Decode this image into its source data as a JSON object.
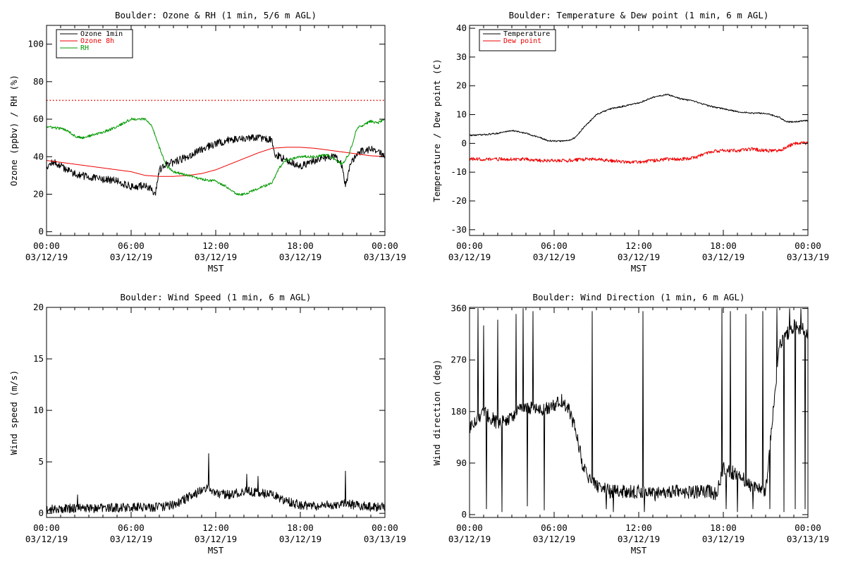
{
  "colors": {
    "black": "#000000",
    "red": "#ee0000",
    "green": "#009900",
    "background": "#ffffff"
  },
  "chart_data": [
    {
      "id": "ozone",
      "type": "line",
      "title": "Boulder: Ozone & RH (1 min, 5/6 m AGL)",
      "xlabel": "MST",
      "ylabel": "Ozone (ppbv) / RH (%)",
      "xlim": [
        0,
        24
      ],
      "ylim": [
        -2,
        110
      ],
      "yticks": [
        0,
        20,
        40,
        60,
        80,
        100
      ],
      "xticks": [
        {
          "hour": 0,
          "time": "00:00",
          "date": "03/12/19"
        },
        {
          "hour": 6,
          "time": "06:00",
          "date": "03/12/19"
        },
        {
          "hour": 12,
          "time": "12:00",
          "date": "03/12/19"
        },
        {
          "hour": 18,
          "time": "18:00",
          "date": "03/12/19"
        },
        {
          "hour": 24,
          "time": "00:00",
          "date": "03/13/19"
        }
      ],
      "legend": {
        "position": "top-left"
      },
      "reference_lines": [
        {
          "y": 70,
          "color": "#ee0000",
          "style": "dotted"
        }
      ],
      "series": [
        {
          "name": "Ozone 1min",
          "color": "#000000",
          "noise": 2.0,
          "seed": 11,
          "x": [
            0,
            0.5,
            1,
            2,
            3,
            4,
            5,
            6,
            6.5,
            7,
            7.5,
            7.7,
            8,
            8.5,
            9,
            10,
            11,
            12,
            13,
            14,
            15,
            16,
            16.1,
            17,
            18,
            19,
            20,
            20.5,
            21,
            21.2,
            21.5,
            22,
            23,
            24
          ],
          "y": [
            35,
            37,
            35,
            31,
            29,
            28,
            27,
            24,
            24,
            25,
            22,
            19,
            33,
            36,
            37,
            40,
            44,
            47,
            49,
            50,
            50,
            49,
            42,
            38,
            35,
            38,
            40,
            40,
            35,
            24,
            35,
            42,
            44,
            41
          ]
        },
        {
          "name": "Ozone 8h",
          "color": "#ee0000",
          "noise": 0,
          "seed": 0,
          "x": [
            0,
            2,
            4,
            6,
            7,
            8,
            9,
            10,
            11,
            12,
            13,
            14,
            15,
            16,
            17,
            18,
            19,
            20,
            21,
            22,
            23,
            24
          ],
          "y": [
            38,
            36,
            34,
            32,
            30,
            29.5,
            29.5,
            30,
            31,
            33,
            36,
            39,
            42,
            44.5,
            45,
            45,
            44.5,
            43.5,
            42.5,
            41.5,
            40.5,
            40
          ]
        },
        {
          "name": "RH",
          "color": "#009900",
          "noise": 0.7,
          "seed": 23,
          "x": [
            0,
            1,
            1.5,
            2,
            2.5,
            3,
            4,
            5,
            6,
            7,
            7.5,
            8,
            8.5,
            9,
            10,
            11,
            12,
            13,
            13.5,
            14,
            15,
            16,
            16.5,
            17,
            18,
            19,
            20,
            20.5,
            21,
            21.5,
            22,
            23,
            23.5,
            24
          ],
          "y": [
            56,
            55,
            54,
            51,
            50,
            51,
            53,
            56,
            60,
            60,
            56,
            45,
            35,
            32,
            30,
            28,
            27,
            23,
            20,
            20,
            23,
            26,
            34,
            38,
            40,
            40,
            41,
            38,
            36,
            42,
            55,
            59,
            58,
            60
          ]
        }
      ]
    },
    {
      "id": "temperature",
      "type": "line",
      "title": "Boulder: Temperature & Dew point (1 min, 6 m AGL)",
      "xlabel": "MST",
      "ylabel": "Temperature / Dew point (C)",
      "xlim": [
        0,
        24
      ],
      "ylim": [
        -32,
        41
      ],
      "yticks": [
        -30,
        -20,
        -10,
        0,
        10,
        20,
        30,
        40
      ],
      "xticks": [
        {
          "hour": 0,
          "time": "00:00",
          "date": "03/12/19"
        },
        {
          "hour": 6,
          "time": "06:00",
          "date": "03/12/19"
        },
        {
          "hour": 12,
          "time": "12:00",
          "date": "03/12/19"
        },
        {
          "hour": 18,
          "time": "18:00",
          "date": "03/12/19"
        },
        {
          "hour": 24,
          "time": "00:00",
          "date": "03/13/19"
        }
      ],
      "legend": {
        "position": "top-left"
      },
      "reference_lines": [],
      "series": [
        {
          "name": "Temperature",
          "color": "#000000",
          "noise": 0.25,
          "seed": 37,
          "x": [
            0,
            1,
            2,
            3,
            4,
            5,
            5.5,
            6,
            6.5,
            7,
            7.5,
            8,
            9,
            10,
            11,
            12,
            13,
            14,
            15,
            16,
            17,
            18,
            19,
            20,
            21,
            22,
            22.5,
            23,
            24
          ],
          "y": [
            2.8,
            3,
            3.5,
            4.5,
            3.5,
            2,
            1,
            0.8,
            0.8,
            1,
            2,
            5,
            10,
            12,
            13,
            14,
            16,
            17,
            15.5,
            14.5,
            13,
            12,
            11,
            10.5,
            10.5,
            9,
            7.5,
            7.5,
            8
          ]
        },
        {
          "name": "Dew point",
          "color": "#ee0000",
          "noise": 0.6,
          "seed": 53,
          "x": [
            0,
            1,
            2,
            3,
            4,
            5,
            6,
            7,
            8,
            9,
            10,
            11,
            12,
            13,
            14,
            15,
            16,
            17,
            18,
            19,
            20,
            21,
            22,
            23,
            24
          ],
          "y": [
            -5.5,
            -5.5,
            -5.5,
            -5.5,
            -5.5,
            -6,
            -6,
            -6,
            -5.5,
            -5.5,
            -6,
            -6.5,
            -6.5,
            -6,
            -5.5,
            -5.5,
            -5,
            -3,
            -2.5,
            -2.5,
            -2,
            -2.5,
            -2.5,
            0,
            0
          ]
        }
      ]
    },
    {
      "id": "wind-speed",
      "type": "line",
      "title": "Boulder: Wind Speed (1 min, 6 m AGL)",
      "xlabel": "MST",
      "ylabel": "Wind speed (m/s)",
      "xlim": [
        0,
        24
      ],
      "ylim": [
        -0.4,
        20
      ],
      "yticks": [
        0,
        5,
        10,
        15,
        20
      ],
      "xticks": [
        {
          "hour": 0,
          "time": "00:00",
          "date": "03/12/19"
        },
        {
          "hour": 6,
          "time": "06:00",
          "date": "03/12/19"
        },
        {
          "hour": 12,
          "time": "12:00",
          "date": "03/12/19"
        },
        {
          "hour": 18,
          "time": "18:00",
          "date": "03/12/19"
        },
        {
          "hour": 24,
          "time": "00:00",
          "date": "03/13/19"
        }
      ],
      "reference_lines": [],
      "series": [
        {
          "name": "",
          "color": "#000000",
          "noise": 0.45,
          "seed": 71,
          "x": [
            0,
            2,
            4,
            6,
            8,
            9,
            10,
            11,
            11.5,
            12,
            13,
            14,
            15,
            16,
            17,
            18,
            19,
            20,
            21,
            22,
            23,
            24
          ],
          "y": [
            0.4,
            0.5,
            0.5,
            0.6,
            0.6,
            0.8,
            1.5,
            2.2,
            2.5,
            2.0,
            1.8,
            2.2,
            2.0,
            1.8,
            1.2,
            0.8,
            0.7,
            0.8,
            1.0,
            0.8,
            0.6,
            0.6
          ],
          "spikes": [
            [
              2.2,
              1.8
            ],
            [
              11.5,
              5.8
            ],
            [
              14.2,
              3.8
            ],
            [
              15.0,
              3.6
            ],
            [
              21.2,
              4.1
            ]
          ]
        }
      ]
    },
    {
      "id": "wind-direction",
      "type": "line",
      "title": "Boulder: Wind Direction (1 min, 6 m AGL)",
      "xlabel": "MST",
      "ylabel": "Wind direction (deg)",
      "xlim": [
        0,
        24
      ],
      "ylim": [
        -5,
        362
      ],
      "yticks": [
        0,
        90,
        180,
        270,
        360
      ],
      "xticks": [
        {
          "hour": 0,
          "time": "00:00",
          "date": "03/12/19"
        },
        {
          "hour": 6,
          "time": "06:00",
          "date": "03/12/19"
        },
        {
          "hour": 12,
          "time": "12:00",
          "date": "03/12/19"
        },
        {
          "hour": 18,
          "time": "18:00",
          "date": "03/12/19"
        },
        {
          "hour": 24,
          "time": "00:00",
          "date": "03/13/19"
        }
      ],
      "reference_lines": [],
      "series": [
        {
          "name": "",
          "color": "#000000",
          "noise": 12,
          "seed": 97,
          "x": [
            0,
            1,
            2,
            3,
            4,
            5,
            6,
            6.5,
            7,
            7.5,
            8,
            8.5,
            9,
            10,
            11,
            12,
            13,
            14,
            15,
            16,
            17,
            17.5,
            18,
            19,
            20,
            21,
            22,
            23,
            24
          ],
          "y": [
            150,
            180,
            160,
            170,
            190,
            180,
            190,
            200,
            185,
            150,
            90,
            60,
            50,
            40,
            40,
            40,
            35,
            40,
            40,
            40,
            40,
            35,
            80,
            70,
            50,
            40,
            300,
            330,
            320
          ],
          "spikes": [
            [
              0.6,
              360
            ],
            [
              1.0,
              330
            ],
            [
              1.2,
              10
            ],
            [
              2.0,
              340
            ],
            [
              2.3,
              5
            ],
            [
              3.3,
              350
            ],
            [
              3.8,
              360
            ],
            [
              4.1,
              15
            ],
            [
              4.5,
              355
            ],
            [
              5.3,
              8
            ],
            [
              8.7,
              355
            ],
            [
              9.7,
              10
            ],
            [
              10.2,
              5
            ],
            [
              12.3,
              355
            ],
            [
              12.4,
              5
            ],
            [
              17.9,
              360
            ],
            [
              18.2,
              10
            ],
            [
              18.5,
              355
            ],
            [
              19.0,
              5
            ],
            [
              19.6,
              350
            ],
            [
              20.1,
              10
            ],
            [
              20.8,
              355
            ],
            [
              21.3,
              10
            ],
            [
              21.8,
              360
            ],
            [
              22.3,
              5
            ],
            [
              22.7,
              360
            ],
            [
              23.1,
              10
            ],
            [
              23.5,
              360
            ],
            [
              23.8,
              10
            ]
          ]
        }
      ]
    }
  ]
}
